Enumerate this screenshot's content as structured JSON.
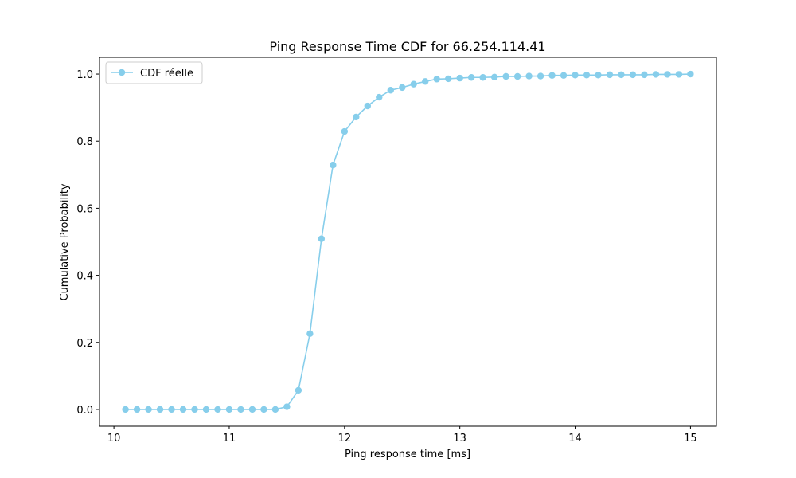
{
  "chart_data": {
    "type": "line",
    "title": "Ping Response Time CDF for 66.254.114.41",
    "xlabel": "Ping response time [ms]",
    "ylabel": "Cumulative Probability",
    "xlim": [
      9.875,
      15.225
    ],
    "ylim": [
      -0.05,
      1.05
    ],
    "xticks": [
      "10",
      "11",
      "12",
      "13",
      "14",
      "15"
    ],
    "yticks": [
      "0.0",
      "0.2",
      "0.4",
      "0.6",
      "0.8",
      "1.0"
    ],
    "grid": false,
    "legend_position": "upper-left",
    "series": [
      {
        "name": "CDF réelle",
        "color": "#87ceeb",
        "marker": "circle",
        "x": [
          10.1,
          10.2,
          10.3,
          10.4,
          10.5,
          10.6,
          10.7,
          10.8,
          10.9,
          11.0,
          11.1,
          11.2,
          11.3,
          11.4,
          11.5,
          11.6,
          11.7,
          11.8,
          11.9,
          12.0,
          12.1,
          12.2,
          12.3,
          12.4,
          12.5,
          12.6,
          12.7,
          12.8,
          12.9,
          13.0,
          13.1,
          13.2,
          13.3,
          13.4,
          13.5,
          13.6,
          13.7,
          13.8,
          13.9,
          14.0,
          14.1,
          14.2,
          14.3,
          14.4,
          14.5,
          14.6,
          14.7,
          14.8,
          14.9,
          15.0
        ],
        "y": [
          0.0,
          0.0,
          0.0,
          0.0,
          0.0,
          0.0,
          0.0,
          0.0,
          0.0,
          0.0,
          0.0,
          0.0,
          0.0,
          0.0,
          0.008,
          0.057,
          0.226,
          0.509,
          0.729,
          0.829,
          0.872,
          0.905,
          0.931,
          0.952,
          0.96,
          0.97,
          0.978,
          0.985,
          0.986,
          0.988,
          0.99,
          0.99,
          0.991,
          0.993,
          0.993,
          0.994,
          0.994,
          0.996,
          0.996,
          0.997,
          0.997,
          0.997,
          0.998,
          0.998,
          0.998,
          0.998,
          0.999,
          0.999,
          0.999,
          1.0
        ]
      }
    ]
  }
}
